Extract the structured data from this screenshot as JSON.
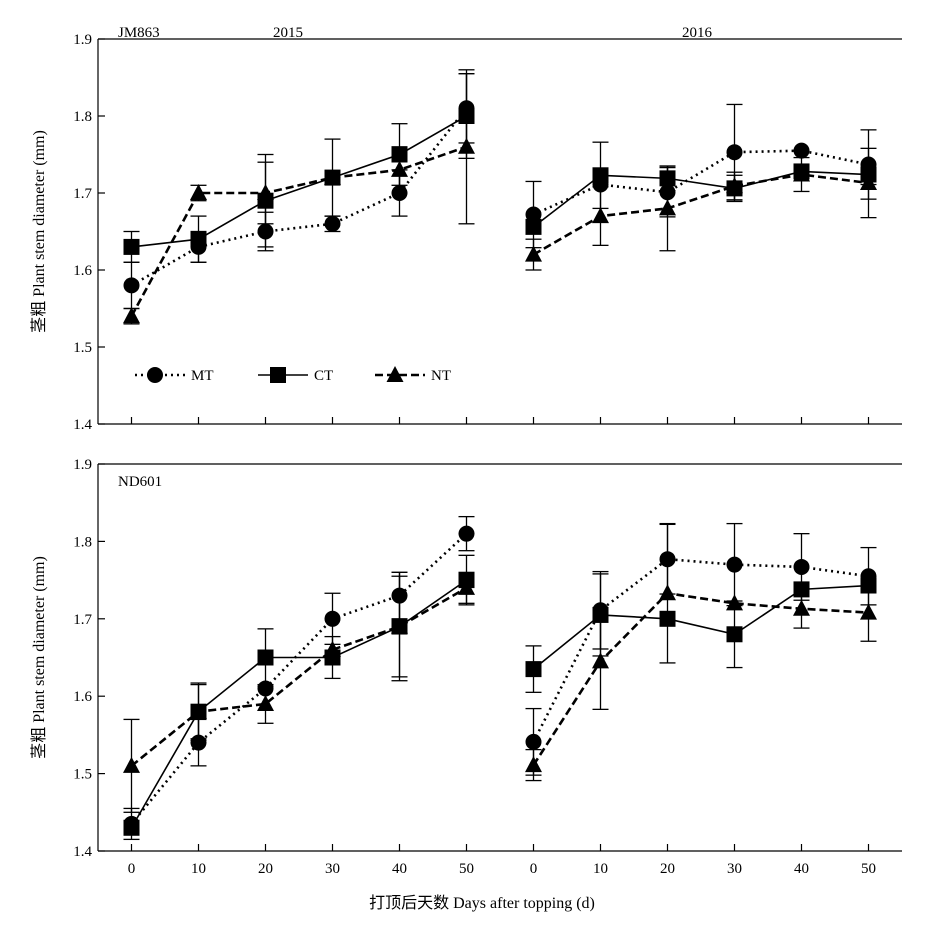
{
  "chart_data": {
    "type": "line",
    "xlabel": "打顶后天数 Days after topping (d)",
    "ylabel": "茎粗 Plant stem diameter (mm)",
    "x": [
      0,
      10,
      20,
      30,
      40,
      50
    ],
    "xlim": [
      -5,
      55
    ],
    "ylim": [
      1.4,
      1.9
    ],
    "yticks": [
      "1.4",
      "1.5",
      "1.6",
      "1.7",
      "1.8",
      "1.9"
    ],
    "xticks": [
      "0",
      "10",
      "20",
      "30",
      "40",
      "50"
    ],
    "grid": false,
    "legend": {
      "placement": "bottom-left of top-left panel",
      "entries": [
        {
          "name": "MT",
          "marker": "circle",
          "line": "dotted"
        },
        {
          "name": "CT",
          "marker": "square",
          "line": "solid"
        },
        {
          "name": "NT",
          "marker": "triangle",
          "line": "dashed"
        }
      ]
    },
    "panels": [
      {
        "cultivar": "JM863",
        "year": "2015",
        "series": [
          {
            "name": "MT",
            "values": [
              1.58,
              1.63,
              1.65,
              1.66,
              1.7,
              1.81
            ],
            "err": [
              0.03,
              0.02,
              0.025,
              0.01,
              0.03,
              0.045
            ]
          },
          {
            "name": "CT",
            "values": [
              1.63,
              1.64,
              1.69,
              1.72,
              1.75,
              1.8
            ],
            "err": [
              0.02,
              0.03,
              0.06,
              0.05,
              0.04,
              0.055
            ]
          },
          {
            "name": "NT",
            "values": [
              1.54,
              1.7,
              1.7,
              1.72,
              1.73,
              1.76
            ],
            "err": [
              0.01,
              0.01,
              0.04,
              0.0,
              0.03,
              0.1
            ]
          }
        ]
      },
      {
        "cultivar": "",
        "year": "2016",
        "series": [
          {
            "name": "MT",
            "values": [
              1.672,
              1.711,
              1.701,
              1.753,
              1.755,
              1.737
            ],
            "err": [
              0.043,
              0.0,
              0.032,
              0.062,
              0.0,
              0.045
            ]
          },
          {
            "name": "CT",
            "values": [
              1.656,
              1.723,
              1.719,
              1.706,
              1.728,
              1.724
            ],
            "err": [
              0.0,
              0.043,
              0.016,
              0.017,
              0.0,
              0.013
            ]
          },
          {
            "name": "NT",
            "values": [
              1.62,
              1.67,
              1.68,
              1.709,
              1.724,
              1.713
            ],
            "err": [
              0.02,
              0.038,
              0.055,
              0.018,
              0.022,
              0.045
            ]
          }
        ]
      },
      {
        "cultivar": "ND601",
        "year": "",
        "series": [
          {
            "name": "MT",
            "values": [
              1.435,
              1.54,
              1.61,
              1.7,
              1.73,
              1.81
            ],
            "err": [
              0.02,
              0.03,
              0.0,
              0.033,
              0.03,
              0.022
            ]
          },
          {
            "name": "CT",
            "values": [
              1.43,
              1.58,
              1.65,
              1.65,
              1.69,
              1.75
            ],
            "err": [
              0.0,
              0.037,
              0.037,
              0.027,
              0.07,
              0.032
            ]
          },
          {
            "name": "NT",
            "values": [
              1.51,
              1.58,
              1.59,
              1.66,
              1.69,
              1.74
            ],
            "err": [
              0.06,
              0.035,
              0.025,
              0.0,
              0.065,
              0.02
            ]
          }
        ]
      },
      {
        "cultivar": "",
        "year": "",
        "series": [
          {
            "name": "MT",
            "values": [
              1.541,
              1.711,
              1.777,
              1.77,
              1.767,
              1.755
            ],
            "err": [
              0.043,
              0.05,
              0.045,
              0.053,
              0.043,
              0.037
            ]
          },
          {
            "name": "CT",
            "values": [
              1.635,
              1.705,
              1.7,
              1.68,
              1.738,
              1.743
            ],
            "err": [
              0.03,
              0.053,
              0.0,
              0.043,
              0.0,
              0.0
            ]
          },
          {
            "name": "NT",
            "values": [
              1.511,
              1.645,
              1.733,
              1.72,
              1.713,
              1.708
            ],
            "err": [
              0.02,
              0.062,
              0.09,
              0.0,
              0.025,
              0.037
            ]
          }
        ]
      }
    ]
  }
}
